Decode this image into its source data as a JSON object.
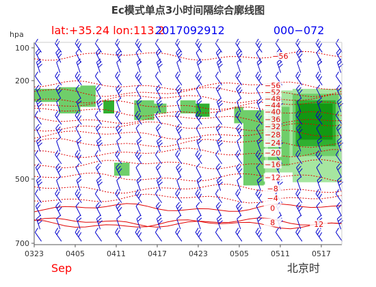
{
  "chart_data": {
    "type": "heatmap",
    "title": "Ec模式单点3小时间隔综合廓线图",
    "header": {
      "location": "lat:+35.24 lon:113.2",
      "init_time": "2017092912",
      "forecast_range": "000−072"
    },
    "ylabel": "hpa",
    "y_ticks": [
      100,
      200,
      500,
      700
    ],
    "x_ticks": [
      "0323",
      "0405",
      "0411",
      "0417",
      "0423",
      "0505",
      "0511",
      "0517"
    ],
    "month_label": "Sep",
    "timezone_label": "北京时",
    "legend": "none",
    "grid": false,
    "humidity_levels": [
      {
        "level": 1,
        "color": "#a6e6a0"
      },
      {
        "level": 2,
        "color": "#6fce6a"
      },
      {
        "level": 3,
        "color": "#2fb02f"
      },
      {
        "level": 4,
        "color": "#129812"
      }
    ],
    "humidity_cells": [
      {
        "x0": 0,
        "x1": 0.16,
        "p0": 225,
        "p1": 265,
        "level": 2
      },
      {
        "x0": 0.16,
        "x1": 0.3,
        "p0": 220,
        "p1": 300,
        "level": 2
      },
      {
        "x0": 0.3,
        "x1": 0.4,
        "p0": 215,
        "p1": 280,
        "level": 2
      },
      {
        "x0": 0.45,
        "x1": 0.52,
        "p0": 260,
        "p1": 300,
        "level": 3
      },
      {
        "x0": 0.65,
        "x1": 0.78,
        "p0": 260,
        "p1": 320,
        "level": 2
      },
      {
        "x0": 0.78,
        "x1": 0.86,
        "p0": 270,
        "p1": 300,
        "level": 2
      },
      {
        "x0": 0.95,
        "x1": 1.05,
        "p0": 260,
        "p1": 300,
        "level": 2
      },
      {
        "x0": 1.05,
        "x1": 1.14,
        "p0": 270,
        "p1": 310,
        "level": 3
      },
      {
        "x0": 1.3,
        "x1": 1.36,
        "p0": 280,
        "p1": 330,
        "level": 2
      },
      {
        "x0": 1.36,
        "x1": 1.5,
        "p0": 290,
        "p1": 520,
        "level": 2
      },
      {
        "x0": 1.5,
        "x1": 1.68,
        "p0": 230,
        "p1": 480,
        "level": 1
      },
      {
        "x0": 1.52,
        "x1": 1.66,
        "p0": 280,
        "p1": 460,
        "level": 2
      },
      {
        "x0": 1.68,
        "x1": 2.0,
        "p0": 225,
        "p1": 510,
        "level": 1
      },
      {
        "x0": 1.68,
        "x1": 1.98,
        "p0": 240,
        "p1": 430,
        "level": 2
      },
      {
        "x0": 1.7,
        "x1": 1.96,
        "p0": 260,
        "p1": 400,
        "level": 3
      },
      {
        "x0": 1.72,
        "x1": 1.94,
        "p0": 270,
        "p1": 380,
        "level": 4
      },
      {
        "x0": 0.52,
        "x1": 0.62,
        "p0": 450,
        "p1": 490,
        "level": 2
      }
    ],
    "contour_labels": [
      {
        "x": 1.6,
        "p": 125,
        "text": "−56"
      },
      {
        "x": 1.55,
        "p": 215,
        "text": "−56"
      },
      {
        "x": 1.55,
        "p": 235,
        "text": "−52"
      },
      {
        "x": 1.55,
        "p": 255,
        "text": "−48"
      },
      {
        "x": 1.55,
        "p": 275,
        "text": "−44"
      },
      {
        "x": 1.55,
        "p": 295,
        "text": "−40"
      },
      {
        "x": 1.55,
        "p": 318,
        "text": "−36"
      },
      {
        "x": 1.55,
        "p": 340,
        "text": "−32"
      },
      {
        "x": 1.55,
        "p": 365,
        "text": "−28"
      },
      {
        "x": 1.55,
        "p": 390,
        "text": "−24"
      },
      {
        "x": 1.55,
        "p": 420,
        "text": "−20"
      },
      {
        "x": 1.55,
        "p": 455,
        "text": "−16"
      },
      {
        "x": 1.55,
        "p": 495,
        "text": "−12"
      },
      {
        "x": 1.55,
        "p": 530,
        "text": "−8"
      },
      {
        "x": 1.55,
        "p": 560,
        "text": "−4"
      },
      {
        "x": 1.55,
        "p": 590,
        "text": "0"
      },
      {
        "x": 1.55,
        "p": 635,
        "text": "8"
      },
      {
        "x": 1.85,
        "p": 640,
        "text": "12"
      }
    ]
  },
  "colors": {
    "background": "#ffffff",
    "header_red": "#ff0000",
    "header_blue": "#0000ee",
    "wind_barb": "#0000cc",
    "temp_contour": "#e00000",
    "axis": "#555555"
  }
}
